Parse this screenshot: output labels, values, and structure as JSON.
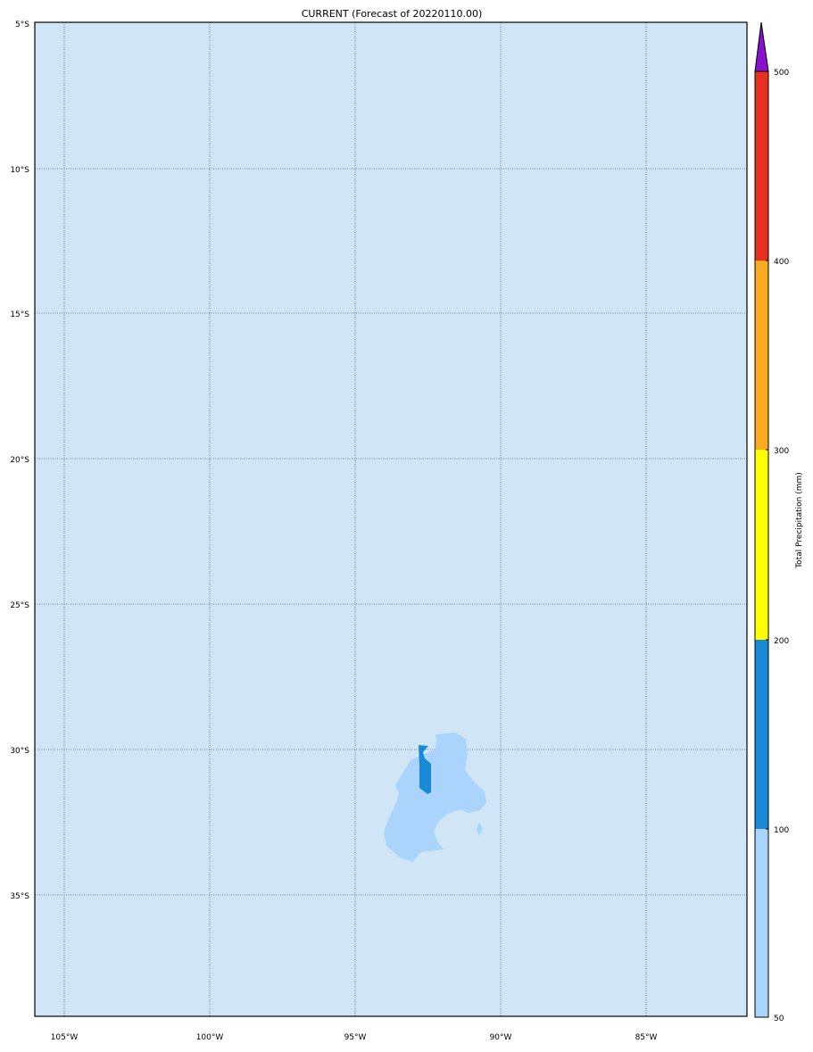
{
  "title": "CURRENT (Forecast of 20220110.00)",
  "map": {
    "background_color": "#d0e6f6",
    "lat_labels": [
      "5°S",
      "10°S",
      "15°S",
      "20°S",
      "25°S",
      "30°S",
      "35°S"
    ],
    "lon_labels": [
      "105°W",
      "100°W",
      "95°W",
      "90°W",
      "85°W"
    ],
    "precip_regions": [
      {
        "level": "50-100",
        "color": "#aad4fc"
      },
      {
        "level": "100-200",
        "color": "#1a8ad8"
      }
    ]
  },
  "colorbar": {
    "label": "Total Precipitation (mm)",
    "ticks": [
      "50",
      "100",
      "200",
      "300",
      "400",
      "500"
    ],
    "colors": [
      "#aad4fc",
      "#1a8ad8",
      "#ffff00",
      "#f8aa20",
      "#e83020"
    ],
    "extend_color": "#8a10d0"
  }
}
